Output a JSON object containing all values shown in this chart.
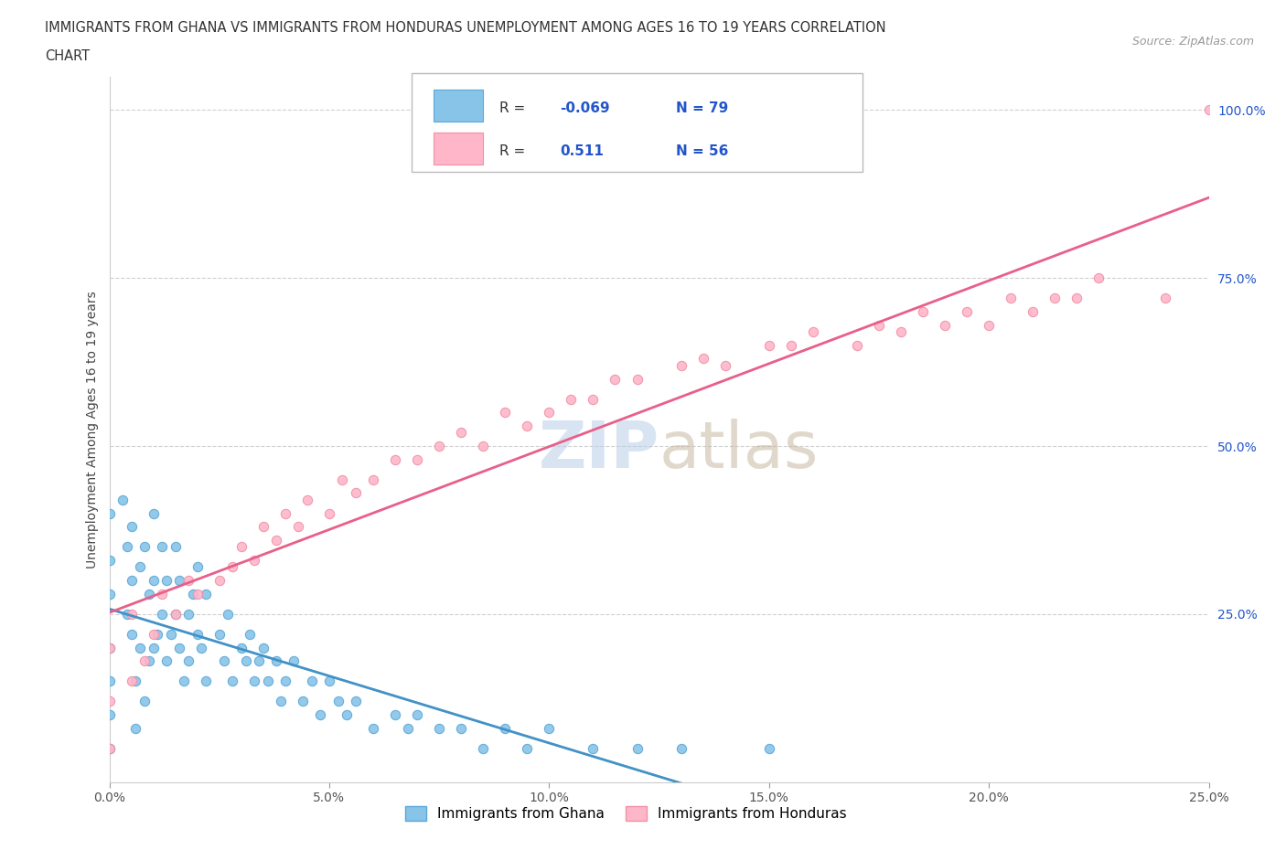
{
  "title_line1": "IMMIGRANTS FROM GHANA VS IMMIGRANTS FROM HONDURAS UNEMPLOYMENT AMONG AGES 16 TO 19 YEARS CORRELATION",
  "title_line2": "CHART",
  "source_text": "Source: ZipAtlas.com",
  "ylabel": "Unemployment Among Ages 16 to 19 years",
  "xlim": [
    0.0,
    0.25
  ],
  "ylim": [
    0.0,
    1.05
  ],
  "xticks": [
    0.0,
    0.05,
    0.1,
    0.15,
    0.2,
    0.25
  ],
  "yticks": [
    0.0,
    0.25,
    0.5,
    0.75,
    1.0
  ],
  "xticklabels": [
    "0.0%",
    "5.0%",
    "10.0%",
    "15.0%",
    "20.0%",
    "25.0%"
  ],
  "yticklabels": [
    "",
    "25.0%",
    "50.0%",
    "75.0%",
    "100.0%"
  ],
  "ghana_color": "#88c4e8",
  "ghana_edge_color": "#5aa8d8",
  "honduras_color": "#ffb6c8",
  "honduras_edge_color": "#f090a8",
  "ghana_trend_color": "#4292c6",
  "honduras_trend_color": "#e8608a",
  "ghana_dashed_color": "#a8d4f0",
  "honduras_dashed_color": "#ffccdd",
  "watermark_color": "#d0dff0",
  "watermark_text": "ZIPatlas",
  "background_color": "#ffffff",
  "grid_color": "#d0d0d0",
  "legend_R_color": "#2255cc",
  "legend_N_color": "#2255cc",
  "legend_label_color": "#333333",
  "ghana_label": "Immigrants from Ghana",
  "honduras_label": "Immigrants from Honduras",
  "ghana_R_text": "-0.069",
  "ghana_N_text": "79",
  "honduras_R_text": "0.511",
  "honduras_N_text": "56",
  "ghana_x": [
    0.0,
    0.0,
    0.0,
    0.0,
    0.0,
    0.0,
    0.0,
    0.003,
    0.004,
    0.004,
    0.005,
    0.005,
    0.005,
    0.006,
    0.006,
    0.007,
    0.007,
    0.008,
    0.008,
    0.009,
    0.009,
    0.01,
    0.01,
    0.01,
    0.011,
    0.012,
    0.012,
    0.013,
    0.013,
    0.014,
    0.015,
    0.015,
    0.016,
    0.016,
    0.017,
    0.018,
    0.018,
    0.019,
    0.02,
    0.02,
    0.021,
    0.022,
    0.022,
    0.025,
    0.026,
    0.027,
    0.028,
    0.03,
    0.031,
    0.032,
    0.033,
    0.034,
    0.035,
    0.036,
    0.038,
    0.039,
    0.04,
    0.042,
    0.044,
    0.046,
    0.048,
    0.05,
    0.052,
    0.054,
    0.056,
    0.06,
    0.065,
    0.068,
    0.07,
    0.075,
    0.08,
    0.085,
    0.09,
    0.095,
    0.1,
    0.11,
    0.12,
    0.13,
    0.15
  ],
  "ghana_y": [
    0.05,
    0.1,
    0.15,
    0.2,
    0.28,
    0.33,
    0.4,
    0.42,
    0.35,
    0.25,
    0.38,
    0.3,
    0.22,
    0.15,
    0.08,
    0.32,
    0.2,
    0.35,
    0.12,
    0.28,
    0.18,
    0.4,
    0.3,
    0.2,
    0.22,
    0.35,
    0.25,
    0.3,
    0.18,
    0.22,
    0.35,
    0.25,
    0.2,
    0.3,
    0.15,
    0.25,
    0.18,
    0.28,
    0.22,
    0.32,
    0.2,
    0.28,
    0.15,
    0.22,
    0.18,
    0.25,
    0.15,
    0.2,
    0.18,
    0.22,
    0.15,
    0.18,
    0.2,
    0.15,
    0.18,
    0.12,
    0.15,
    0.18,
    0.12,
    0.15,
    0.1,
    0.15,
    0.12,
    0.1,
    0.12,
    0.08,
    0.1,
    0.08,
    0.1,
    0.08,
    0.08,
    0.05,
    0.08,
    0.05,
    0.08,
    0.05,
    0.05,
    0.05,
    0.05
  ],
  "honduras_x": [
    0.0,
    0.0,
    0.0,
    0.005,
    0.005,
    0.008,
    0.01,
    0.012,
    0.015,
    0.018,
    0.02,
    0.025,
    0.028,
    0.03,
    0.033,
    0.035,
    0.038,
    0.04,
    0.043,
    0.045,
    0.05,
    0.053,
    0.056,
    0.06,
    0.065,
    0.07,
    0.075,
    0.08,
    0.085,
    0.09,
    0.095,
    0.1,
    0.105,
    0.11,
    0.115,
    0.12,
    0.13,
    0.135,
    0.14,
    0.15,
    0.155,
    0.16,
    0.17,
    0.175,
    0.18,
    0.185,
    0.19,
    0.195,
    0.2,
    0.205,
    0.21,
    0.215,
    0.22,
    0.225,
    0.24,
    0.25
  ],
  "honduras_y": [
    0.05,
    0.12,
    0.2,
    0.15,
    0.25,
    0.18,
    0.22,
    0.28,
    0.25,
    0.3,
    0.28,
    0.3,
    0.32,
    0.35,
    0.33,
    0.38,
    0.36,
    0.4,
    0.38,
    0.42,
    0.4,
    0.45,
    0.43,
    0.45,
    0.48,
    0.48,
    0.5,
    0.52,
    0.5,
    0.55,
    0.53,
    0.55,
    0.57,
    0.57,
    0.6,
    0.6,
    0.62,
    0.63,
    0.62,
    0.65,
    0.65,
    0.67,
    0.65,
    0.68,
    0.67,
    0.7,
    0.68,
    0.7,
    0.68,
    0.72,
    0.7,
    0.72,
    0.72,
    0.75,
    0.72,
    1.0
  ]
}
